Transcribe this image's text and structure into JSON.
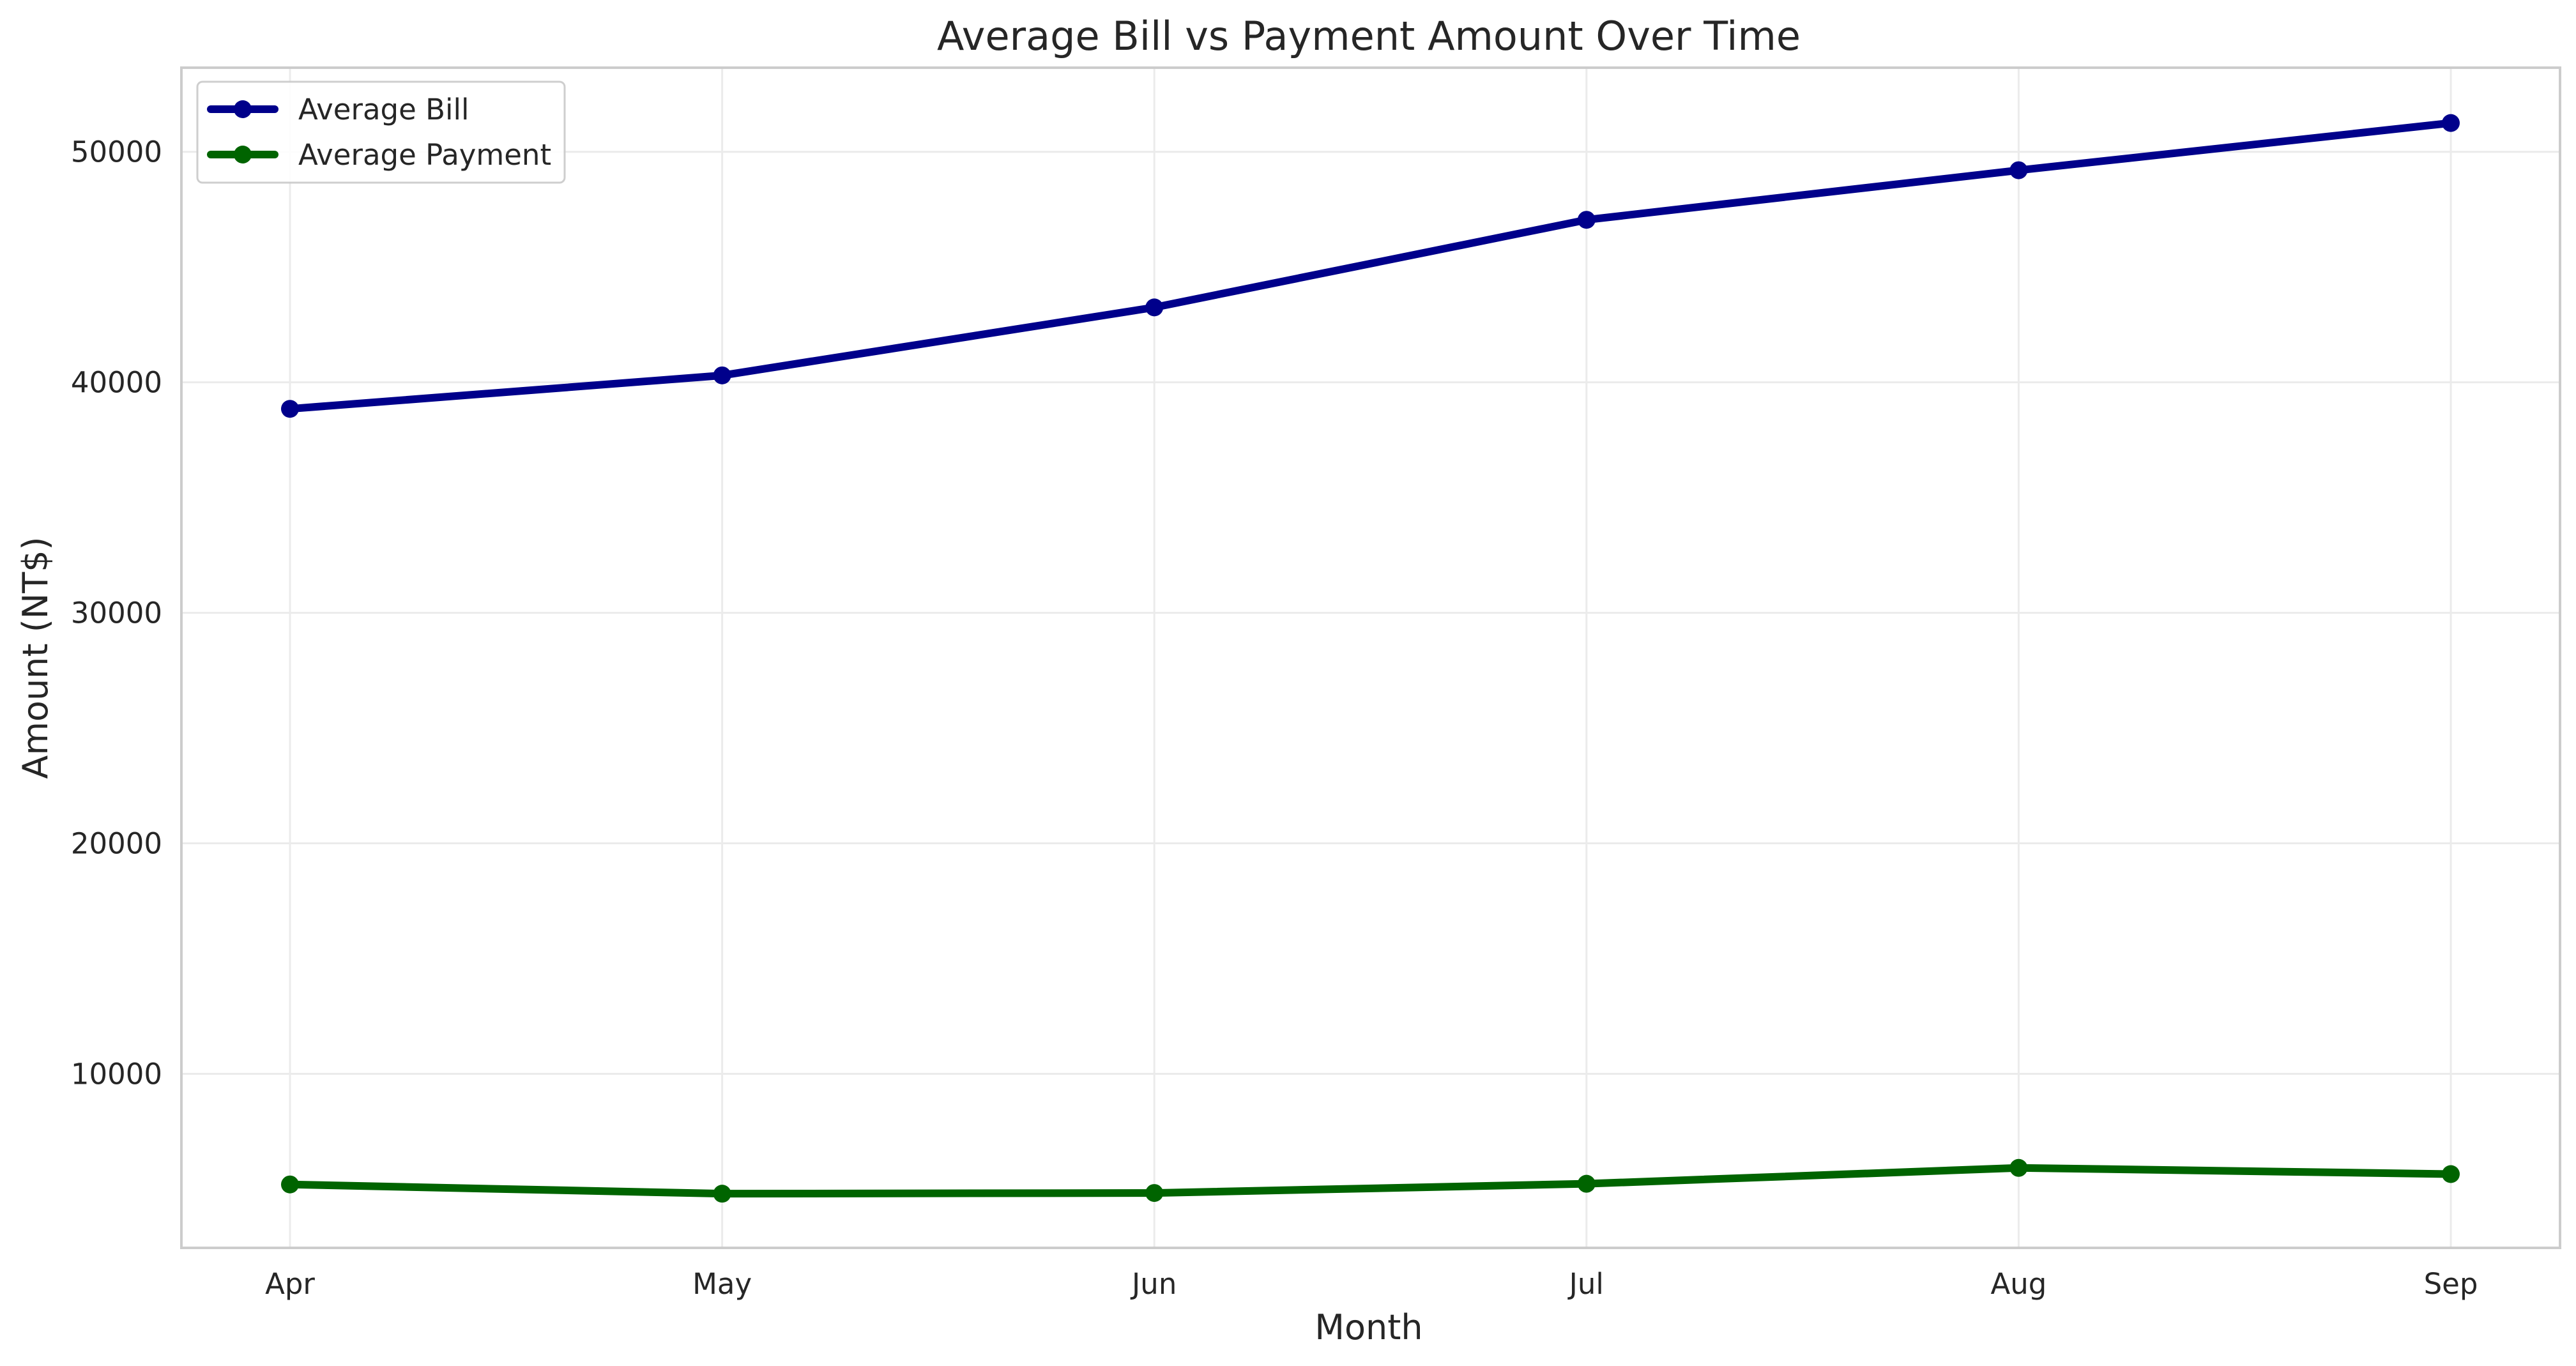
{
  "chart_data": {
    "type": "line",
    "title": "Average Bill vs Payment Amount Over Time",
    "xlabel": "Month",
    "ylabel": "Amount (NT$)",
    "categories": [
      "Apr",
      "May",
      "Jun",
      "Jul",
      "Aug",
      "Sep"
    ],
    "series": [
      {
        "name": "Average Bill",
        "color": "#00008b",
        "values": [
          38850,
          40300,
          43250,
          47050,
          49200,
          51250
        ]
      },
      {
        "name": "Average Payment",
        "color": "#006400",
        "values": [
          5200,
          4800,
          4830,
          5230,
          5920,
          5650
        ]
      }
    ],
    "ylim": [
      2450,
      53650
    ],
    "yticks": [
      "10000",
      "20000",
      "30000",
      "40000",
      "50000"
    ],
    "grid": true,
    "legend_position": "top-left"
  }
}
